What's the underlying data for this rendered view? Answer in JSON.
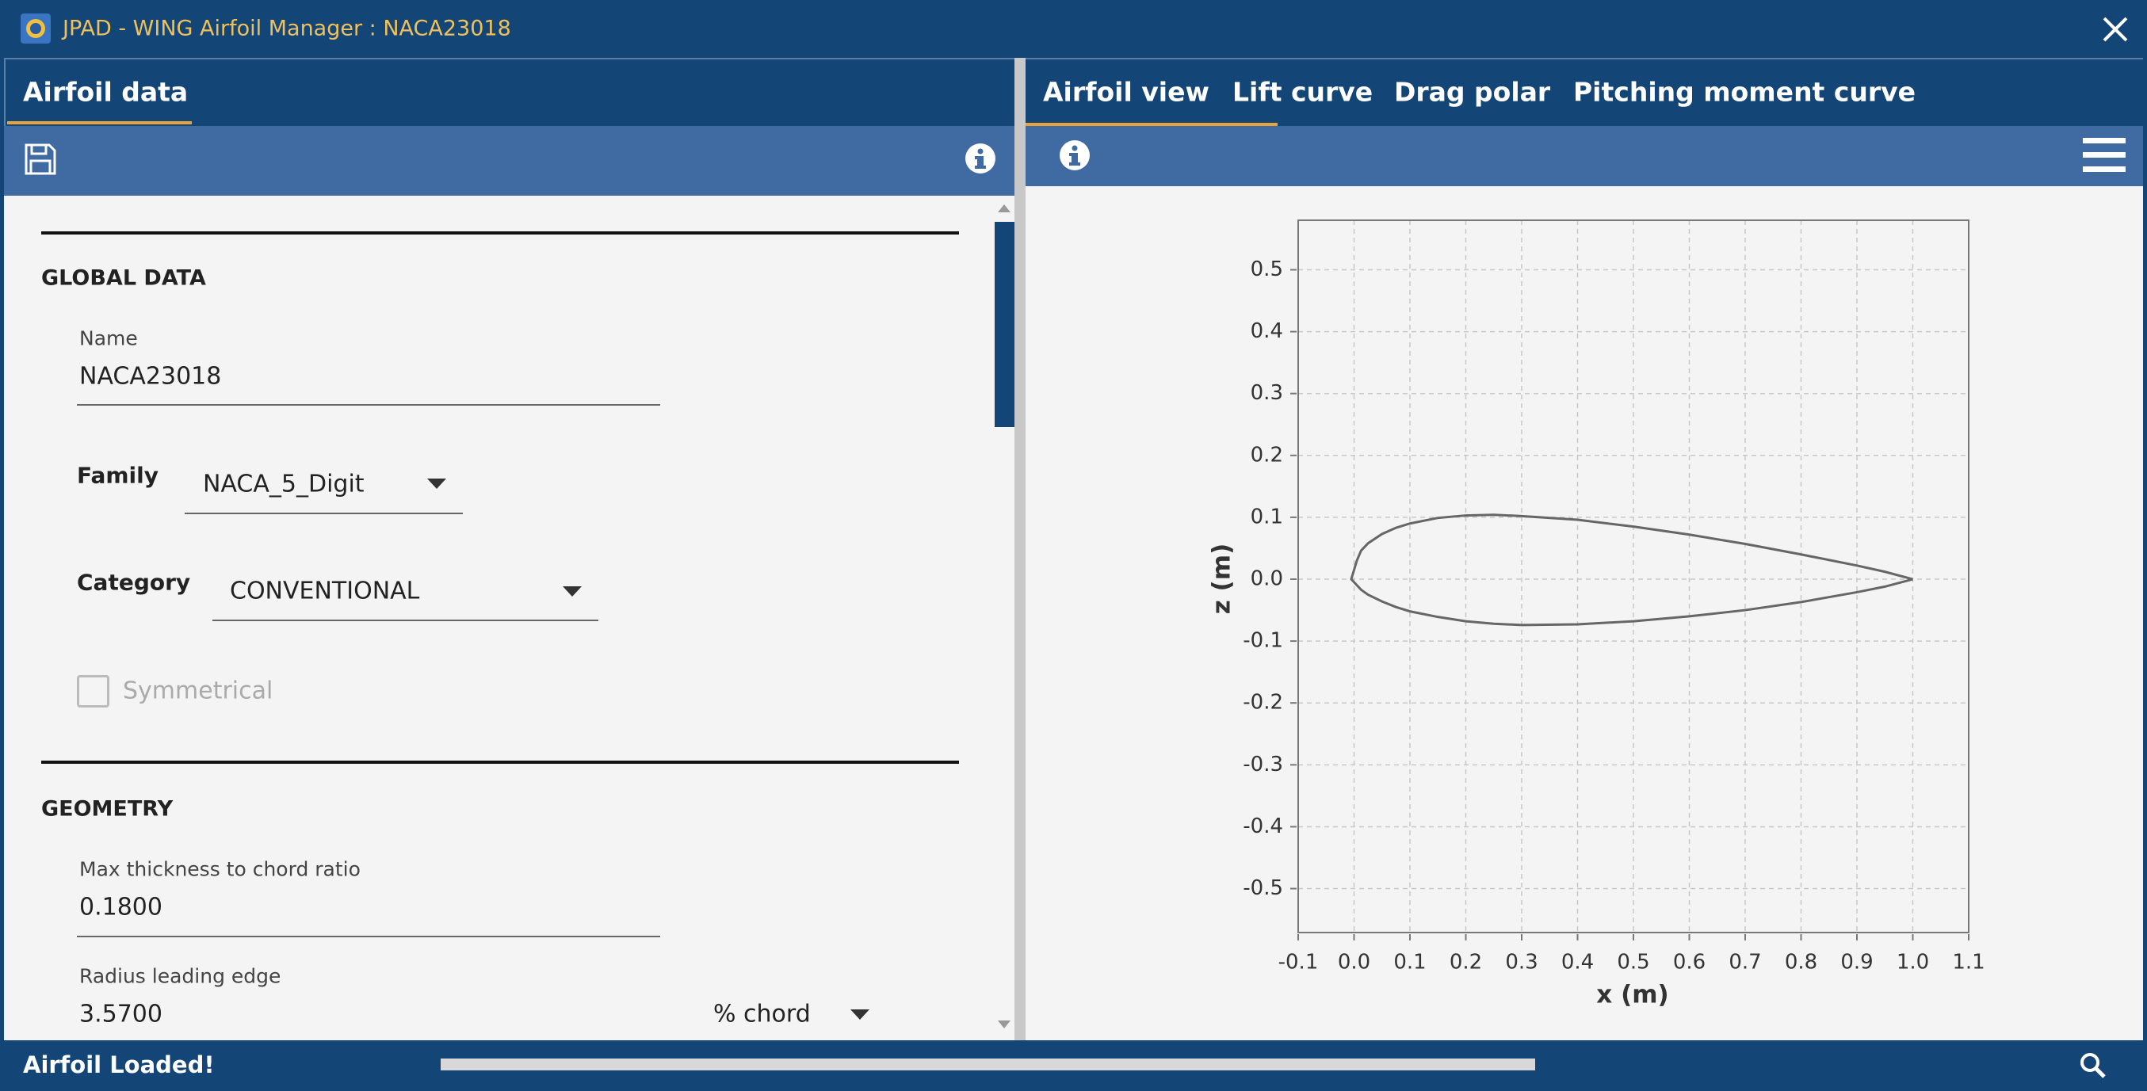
{
  "window": {
    "title": "JPAD - WING Airfoil Manager : NACA23018"
  },
  "left_panel": {
    "tab": "Airfoil data",
    "global_data": {
      "heading": "GLOBAL DATA",
      "name_label": "Name",
      "name_value": "NACA23018",
      "family_label": "Family",
      "family_value": "NACA_5_Digit",
      "category_label": "Category",
      "category_value": "CONVENTIONAL",
      "symmetrical_label": "Symmetrical"
    },
    "geometry": {
      "heading": "GEOMETRY",
      "thickness_label": "Max thickness to chord ratio",
      "thickness_value": "0.1800",
      "radius_label": "Radius leading edge",
      "radius_value": "3.5700",
      "radius_unit": "% chord"
    }
  },
  "right_panel": {
    "tabs": [
      "Airfoil view",
      "Lift curve",
      "Drag polar",
      "Pitching moment curve"
    ]
  },
  "status_bar": {
    "message": "Airfoil Loaded!"
  },
  "chart_data": {
    "type": "line",
    "xlabel": "x (m)",
    "ylabel": "z (m)",
    "x": [
      1.0,
      0.95,
      0.9,
      0.8,
      0.7,
      0.6,
      0.5,
      0.4,
      0.3,
      0.25,
      0.2,
      0.15,
      0.1,
      0.075,
      0.05,
      0.025,
      0.0125,
      0.005,
      -0.005,
      0.0125,
      0.025,
      0.05,
      0.075,
      0.1,
      0.15,
      0.2,
      0.25,
      0.3,
      0.4,
      0.5,
      0.6,
      0.7,
      0.8,
      0.9,
      0.95,
      1.0
    ],
    "series": [
      {
        "color": "#666666",
        "values": [
          0,
          0.012,
          0.022,
          0.04,
          0.057,
          0.072,
          0.085,
          0.096,
          0.102,
          0.104,
          0.103,
          0.099,
          0.09,
          0.083,
          0.073,
          0.058,
          0.046,
          0.03,
          0.0,
          -0.017,
          -0.025,
          -0.036,
          -0.045,
          -0.052,
          -0.061,
          -0.068,
          -0.072,
          -0.074,
          -0.073,
          -0.068,
          -0.06,
          -0.05,
          -0.037,
          -0.021,
          -0.012,
          0
        ]
      }
    ],
    "xlim": [
      -0.1,
      1.1
    ],
    "ylim": [
      -0.571,
      0.58
    ],
    "xticks": [
      -0.1,
      {
        "value": 0,
        "label": "0.0"
      },
      0.1,
      0.2,
      0.3,
      0.4,
      0.5,
      0.6,
      0.7,
      0.8,
      0.9,
      {
        "value": 1,
        "label": "1.0"
      },
      1.1
    ],
    "yticks": [
      -0.5,
      -0.4,
      -0.3,
      -0.2,
      -0.1,
      {
        "value": 0,
        "label": "0.0"
      },
      0.1,
      0.2,
      0.3,
      0.4,
      0.5
    ],
    "grid": true
  }
}
